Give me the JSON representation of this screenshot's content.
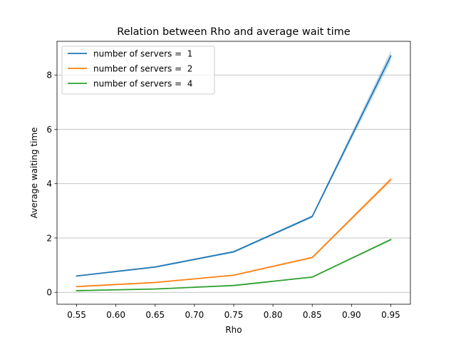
{
  "chart_data": {
    "type": "line",
    "title": "Relation between Rho and average wait time",
    "xlabel": "Rho",
    "ylabel": "Average waiting time",
    "xlim": [
      0.525,
      0.975
    ],
    "ylim": [
      -0.44,
      9.24
    ],
    "xticks": [
      0.55,
      0.6,
      0.65,
      0.7,
      0.75,
      0.8,
      0.85,
      0.9,
      0.95
    ],
    "xtick_labels": [
      "0.55",
      "0.60",
      "0.65",
      "0.70",
      "0.75",
      "0.80",
      "0.85",
      "0.90",
      "0.95"
    ],
    "yticks": [
      0,
      2,
      4,
      6,
      8
    ],
    "ytick_labels": [
      "0",
      "2",
      "4",
      "6",
      "8"
    ],
    "grid": {
      "y": true,
      "x": false
    },
    "legend_position": "top-left",
    "x": [
      0.55,
      0.65,
      0.75,
      0.85,
      0.95
    ],
    "series": [
      {
        "name": "number of servers =  1",
        "color": "#1f77b4",
        "values": [
          0.6,
          0.93,
          1.49,
          2.79,
          8.7
        ],
        "band": [
          0.02,
          0.03,
          0.04,
          0.05,
          0.2
        ]
      },
      {
        "name": "number of servers =  2",
        "color": "#ff7f0e",
        "values": [
          0.21,
          0.36,
          0.63,
          1.28,
          4.15
        ],
        "band": [
          0.01,
          0.01,
          0.02,
          0.03,
          0.08
        ]
      },
      {
        "name": "number of servers =  4",
        "color": "#2ca02c",
        "values": [
          0.06,
          0.12,
          0.25,
          0.56,
          1.94
        ],
        "band": [
          0.01,
          0.01,
          0.01,
          0.02,
          0.04
        ]
      }
    ]
  }
}
